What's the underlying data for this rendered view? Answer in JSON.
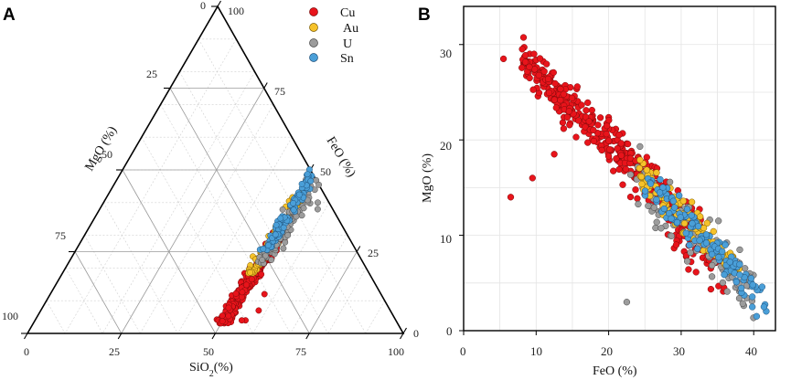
{
  "panels": {
    "a": {
      "letter": "A"
    },
    "b": {
      "letter": "B"
    }
  },
  "colors": {
    "Cu": "#e8141b",
    "Au": "#f6c22a",
    "U": "#9c9c9c",
    "Sn": "#4a9fd8"
  },
  "legend": [
    {
      "key": "Cu",
      "label": "Cu"
    },
    {
      "key": "Au",
      "label": "Au"
    },
    {
      "key": "U",
      "label": "U"
    },
    {
      "key": "Sn",
      "label": "Sn"
    }
  ],
  "chart_data": [
    {
      "type": "scatter",
      "subtype": "ternary",
      "panel": "A",
      "components": [
        "SiO2",
        "FeO",
        "MgO"
      ],
      "bottom_axis": {
        "label_prefix": "SiO",
        "label_sub": "2",
        "label_suffix": "(%)",
        "ticks": [
          "0",
          "25",
          "50",
          "75",
          "100"
        ]
      },
      "left_axis": {
        "label": "MgO (%)",
        "ticks": [
          "0",
          "25",
          "50",
          "75",
          "100"
        ]
      },
      "right_axis": {
        "label": "FeO (%)",
        "ticks": [
          "0",
          "25",
          "50",
          "75",
          "100"
        ]
      },
      "series": [
        {
          "name": "Cu",
          "description": "dense cluster",
          "SiO2_range": [
            48,
            55
          ],
          "FeO_range": [
            2,
            30
          ],
          "MgO_range": [
            15,
            46
          ]
        },
        {
          "name": "Au",
          "SiO2_range": [
            48,
            54
          ],
          "FeO_range": [
            18,
            43
          ],
          "MgO_range": [
            4,
            30
          ]
        },
        {
          "name": "U",
          "SiO2_range": [
            48,
            58
          ],
          "FeO_range": [
            20,
            48
          ],
          "MgO_range": [
            0,
            30
          ]
        },
        {
          "name": "Sn",
          "SiO2_range": [
            48,
            54
          ],
          "FeO_range": [
            25,
            52
          ],
          "MgO_range": [
            0,
            25
          ]
        }
      ]
    },
    {
      "type": "scatter",
      "panel": "B",
      "xlabel": "FeO (%)",
      "ylabel": "MgO (%)",
      "xlim": [
        0,
        43
      ],
      "ylim": [
        0,
        34
      ],
      "xticks": [
        "0",
        "10",
        "20",
        "30",
        "40"
      ],
      "yticks": [
        "0",
        "10",
        "20",
        "30"
      ],
      "grid": true,
      "series": [
        {
          "name": "Cu",
          "trend": "MgO ≈ 34.5 − 0.74·FeO",
          "FeO_range": [
            8,
            36
          ],
          "outliers": [
            [
              5.5,
              28.5
            ],
            [
              6.5,
              14
            ],
            [
              9.5,
              16
            ],
            [
              12.5,
              18.5
            ]
          ]
        },
        {
          "name": "Au",
          "trend": "MgO ≈ 34.5 − 0.74·FeO",
          "FeO_range": [
            24,
            38
          ]
        },
        {
          "name": "U",
          "trend": "MgO ≈ 33.5 − 0.74·FeO",
          "FeO_range": [
            23,
            40
          ],
          "outliers": [
            [
              22.5,
              3
            ]
          ]
        },
        {
          "name": "Sn",
          "trend": "MgO ≈ 35.5 − 0.78·FeO",
          "FeO_range": [
            25,
            42
          ]
        }
      ]
    }
  ]
}
